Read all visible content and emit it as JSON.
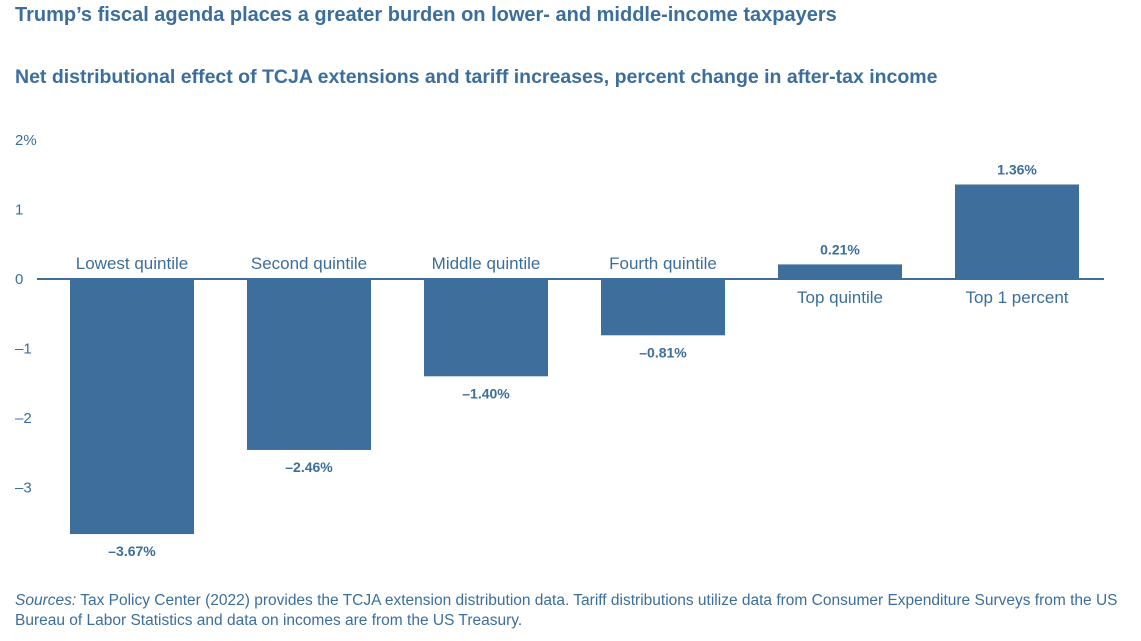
{
  "title": "Trump’s fiscal agenda places a greater burden on lower- and middle-income taxpayers",
  "subtitle": "Net distributional effect of TCJA extensions and tariff increases, percent change in after-tax income",
  "chart_data": {
    "type": "bar",
    "categories": [
      "Lowest quintile",
      "Second quintile",
      "Middle quintile",
      "Fourth quintile",
      "Top quintile",
      "Top 1 percent"
    ],
    "values": [
      -3.67,
      -2.46,
      -1.4,
      -0.81,
      0.21,
      1.36
    ],
    "value_labels": [
      "–3.67%",
      "–2.46%",
      "–1.40%",
      "–0.81%",
      "0.21%",
      "1.36%"
    ],
    "y_ticks": [
      2,
      1,
      0,
      -1,
      -2,
      -3
    ],
    "y_tick_labels": [
      "2%",
      "1",
      "0",
      "–1",
      "–2",
      "–3"
    ],
    "ylim": [
      -3.8,
      2
    ],
    "bar_color": "#3d6e9c",
    "text_color": "#3c6e9b",
    "xlabel": "",
    "ylabel": ""
  },
  "source": {
    "lead": "Sources:",
    "text": " Tax Policy Center (2022) provides the TCJA extension distribution data. Tariff distributions utilize data from Consumer Expenditure Surveys from the US Bureau of Labor Statistics and data on incomes are from the US Treasury."
  }
}
